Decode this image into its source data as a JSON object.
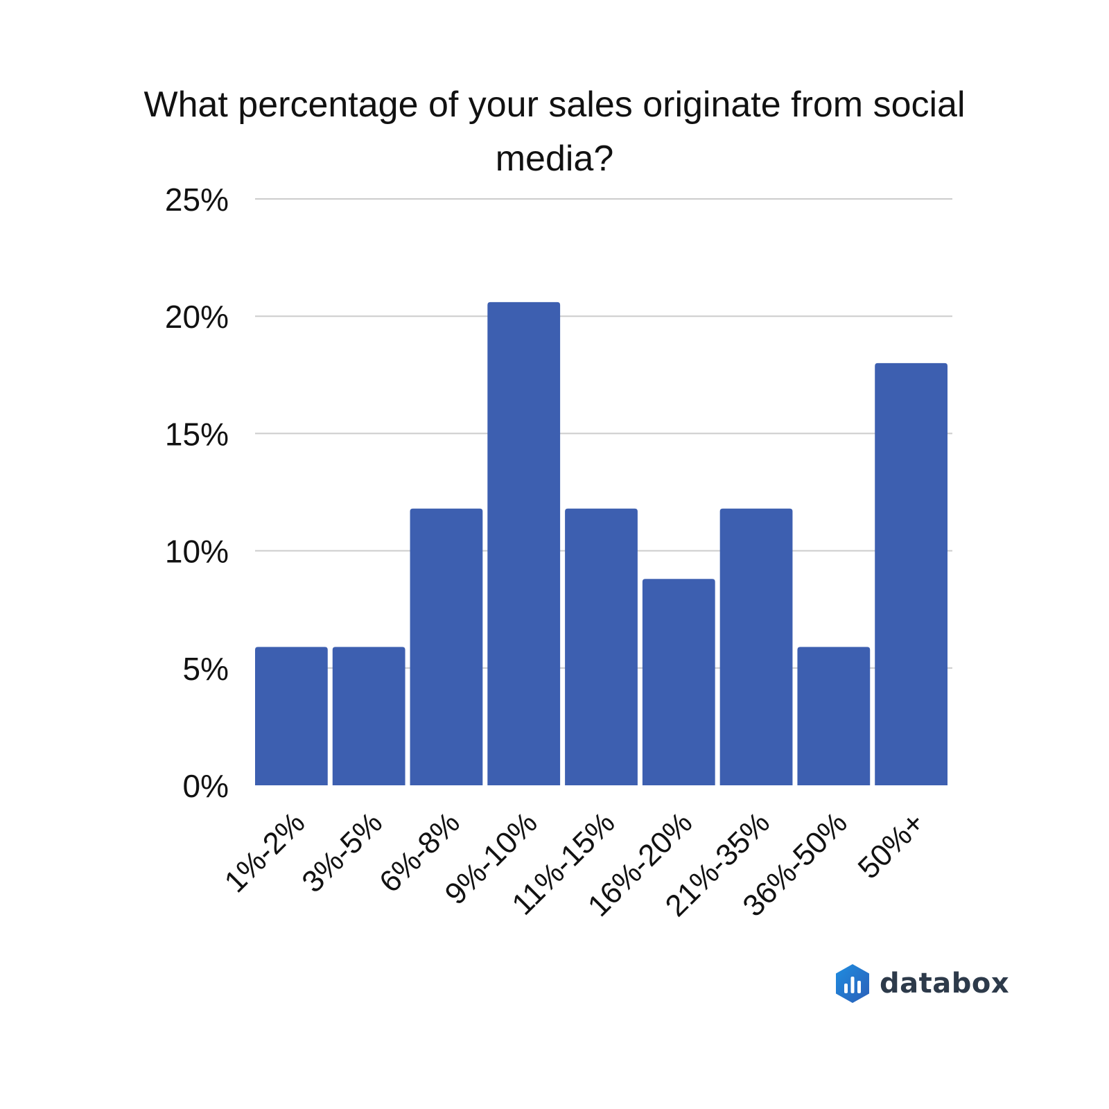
{
  "chart_data": {
    "type": "bar",
    "title": "What percentage of your sales originate from social media?",
    "categories": [
      "1%-2%",
      "3%-5%",
      "6%-8%",
      "9%-10%",
      "11%-15%",
      "16%-20%",
      "21%-35%",
      "36%-50%",
      "50%+"
    ],
    "values": [
      5.9,
      5.9,
      11.8,
      20.6,
      11.8,
      8.8,
      11.8,
      5.9,
      18.0
    ],
    "xlabel": "",
    "ylabel": "",
    "ylim": [
      0,
      25
    ],
    "y_ticks": [
      0,
      5,
      10,
      15,
      20,
      25
    ],
    "y_tick_labels": [
      "0%",
      "5%",
      "10%",
      "15%",
      "20%",
      "25%"
    ],
    "grid": true,
    "legend": "none",
    "bar_color": "#3d5fb0"
  },
  "brand": {
    "name": "databox",
    "icon": "databox-logo-icon"
  }
}
